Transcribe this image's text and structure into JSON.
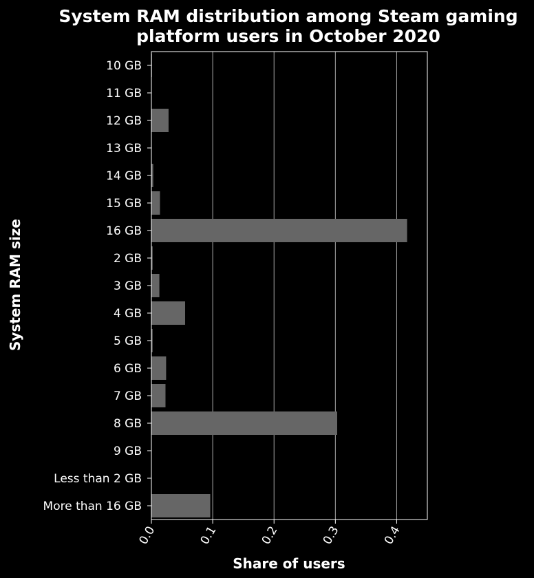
{
  "chart_data": {
    "type": "bar",
    "orientation": "horizontal",
    "title_lines": [
      "System RAM distribution among Steam gaming",
      "platform users in October 2020"
    ],
    "xlabel": "Share of users",
    "ylabel": "System RAM size",
    "xlim": [
      0,
      0.45
    ],
    "xticks": [
      "0.0",
      "0.1",
      "0.2",
      "0.3",
      "0.4"
    ],
    "grid": "vertical",
    "categories": [
      "10 GB",
      "11 GB",
      "12 GB",
      "13 GB",
      "14 GB",
      "15 GB",
      "16 GB",
      "2 GB",
      "3 GB",
      "4 GB",
      "5 GB",
      "6 GB",
      "7 GB",
      "8 GB",
      "9 GB",
      "Less than 2 GB",
      "More than 16 GB"
    ],
    "values": [
      0.001,
      0.0002,
      0.028,
      0.0003,
      0.003,
      0.014,
      0.417,
      0.002,
      0.013,
      0.055,
      0.002,
      0.024,
      0.023,
      0.303,
      0.0005,
      0.0003,
      0.096
    ]
  },
  "colors": {
    "background": "#000000",
    "bar": "#666666",
    "text": "#ffffff",
    "grid": "#aaaaaa"
  }
}
